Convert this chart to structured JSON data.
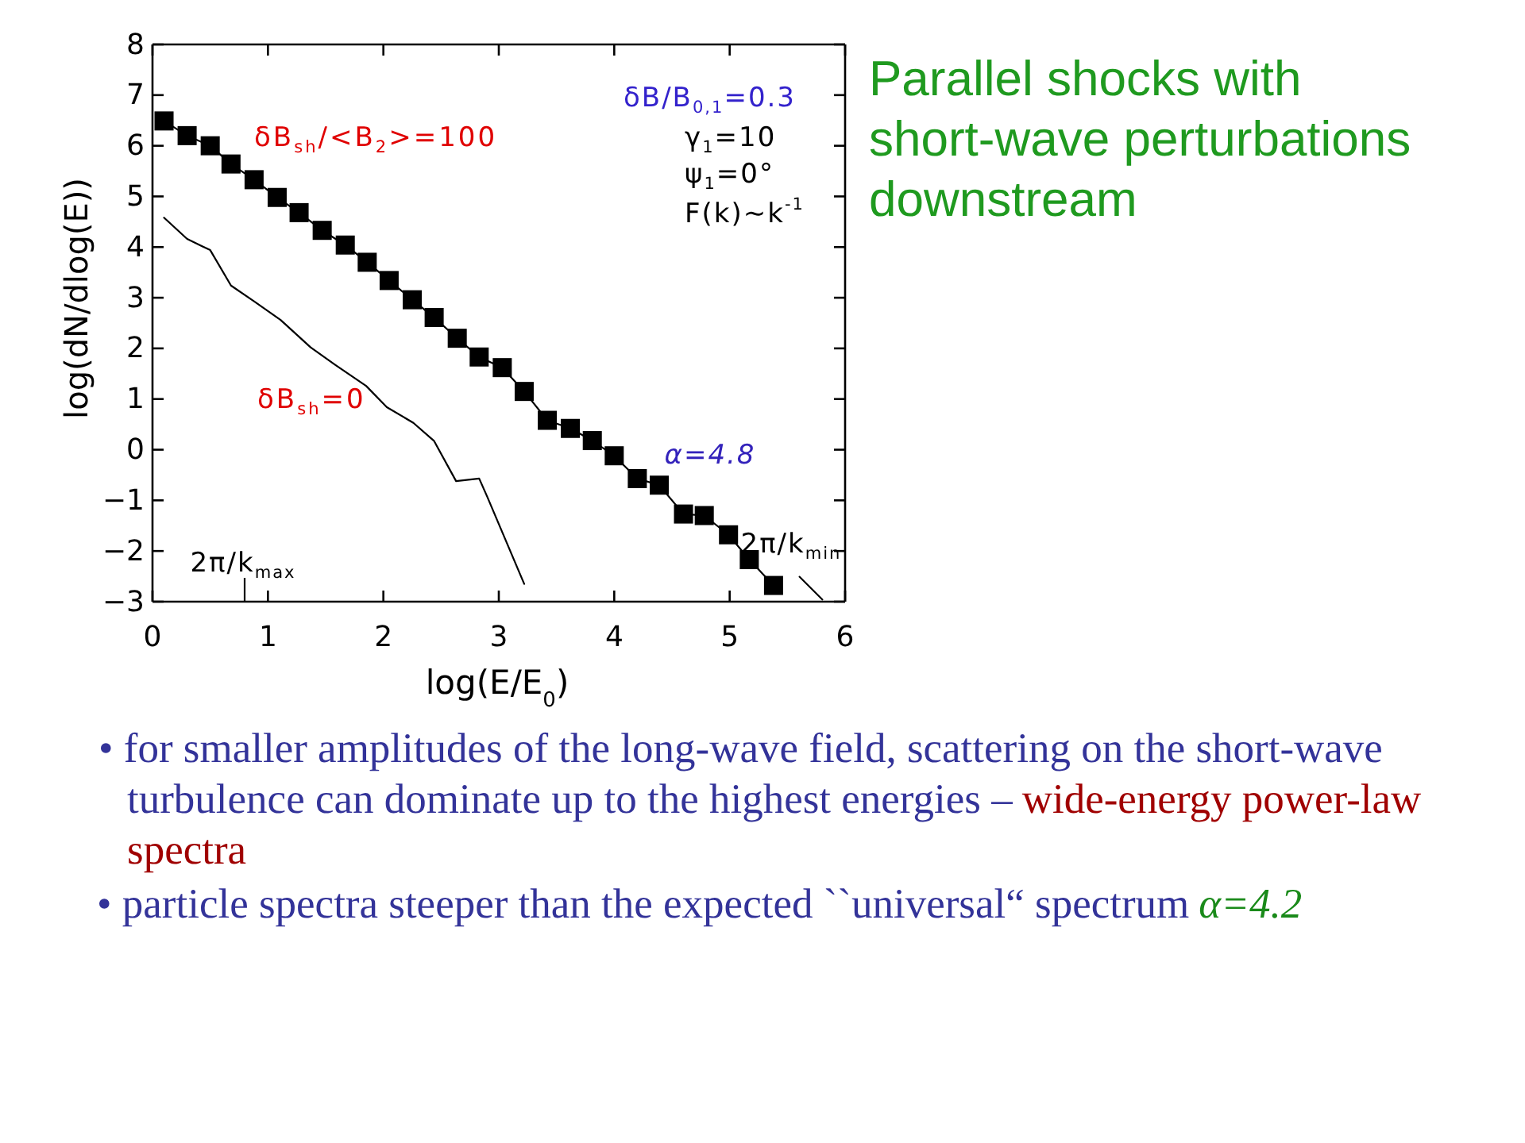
{
  "chart_data": {
    "type": "line",
    "title": "Parallel shocks with short-wave perturbations downstream",
    "xlabel": "log(E/E$_{0}$)",
    "ylabel": "log(dN/dlog(E))",
    "xlim": [
      0,
      6
    ],
    "ylim": [
      -3,
      8
    ],
    "xticks": [
      0,
      1,
      2,
      3,
      4,
      5,
      6
    ],
    "yticks": [
      {
        "value": -3,
        "label": "−3"
      },
      {
        "value": -2,
        "label": "−2"
      },
      {
        "value": -1,
        "label": "−1"
      },
      0,
      1,
      2,
      3,
      4,
      5,
      6,
      7,
      8
    ],
    "series": [
      {
        "name": "δB$_{sh}$/<B$_{2}$>=100",
        "color": "#000000",
        "marker": "square",
        "x": [
          0.1,
          0.3,
          0.5,
          0.68,
          0.88,
          1.08,
          1.27,
          1.47,
          1.67,
          1.86,
          2.05,
          2.25,
          2.44,
          2.64,
          2.83,
          3.03,
          3.22,
          3.42,
          3.62,
          3.81,
          4.0,
          4.2,
          4.39,
          4.6,
          4.78,
          4.99,
          5.17,
          5.38
        ],
        "values": [
          6.49,
          6.2,
          6.0,
          5.64,
          5.33,
          4.98,
          4.68,
          4.33,
          4.04,
          3.7,
          3.34,
          2.96,
          2.61,
          2.2,
          1.83,
          1.62,
          1.15,
          0.58,
          0.42,
          0.18,
          -0.12,
          -0.57,
          -0.7,
          -1.27,
          -1.3,
          -1.68,
          -2.17,
          -2.68
        ]
      },
      {
        "name": "δB$_{sh}$=0",
        "color": "#000000",
        "marker": "none",
        "x": [
          0.1,
          0.3,
          0.5,
          0.68,
          0.88,
          1.11,
          1.37,
          1.58,
          1.85,
          2.03,
          2.26,
          2.44,
          2.63,
          2.83,
          2.9,
          3.22
        ],
        "values": [
          4.58,
          4.16,
          3.94,
          3.24,
          2.93,
          2.56,
          2.02,
          1.68,
          1.26,
          0.84,
          0.53,
          0.17,
          -0.62,
          -0.57,
          -0.93,
          -2.65
        ]
      }
    ],
    "annotations": [
      "δB/B$_{0,1}$=0.3",
      "γ$_{1}$=10",
      "ψ$_{1}$=0°",
      "F(k)~k$^{-1}$",
      "α=4.8",
      "2π/k$_{max}$",
      "2π/k$_{min}$",
      "• for smaller amplitudes of the long-wave field, scattering on the short-wave",
      "turbulence can dominate up to the highest energies –",
      "wide-energy power-law",
      "spectra",
      "• particle spectra steeper than the expected ``universal“ spectrum",
      "α=4.2"
    ]
  }
}
